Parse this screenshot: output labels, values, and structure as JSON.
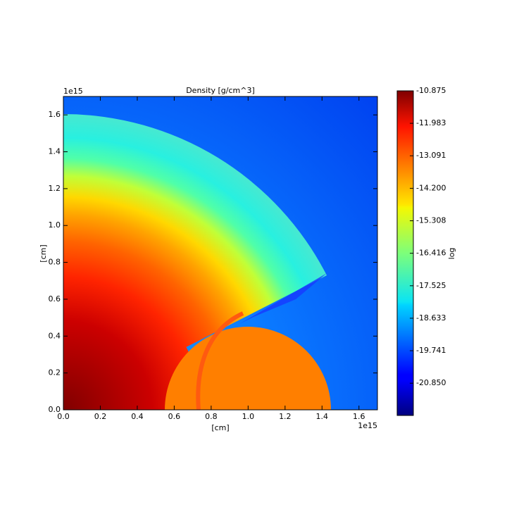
{
  "chart_data": {
    "type": "heatmap",
    "title": "Density [g/cm^3]",
    "x_label": "[cm]",
    "y_label": "[cm]",
    "x_offset_label": "1e15",
    "y_offset_label": "1e15",
    "xlim": [
      0,
      1.7
    ],
    "ylim": [
      0,
      1.7
    ],
    "xticks": [
      {
        "value": 0,
        "label": "0.0"
      },
      0.2,
      0.4,
      0.6,
      0.8,
      {
        "value": 1,
        "label": "1.0"
      },
      1.2,
      1.4,
      1.6
    ],
    "yticks": [
      {
        "value": 0,
        "label": "0.0"
      },
      0.2,
      0.4,
      0.6,
      0.8,
      {
        "value": 1,
        "label": "1.0"
      },
      1.2,
      1.4,
      1.6
    ],
    "colorbar": {
      "label": "log",
      "colormap": "jet",
      "clim": [
        -21.95,
        -10.875
      ],
      "ticks": [
        -10.875,
        -11.983,
        -13.091,
        {
          "value": -14.2,
          "label": "-14.200"
        },
        -15.308,
        -16.416,
        -17.525,
        -18.633,
        -19.741,
        {
          "value": -20.85,
          "label": "-20.850"
        }
      ]
    }
  }
}
